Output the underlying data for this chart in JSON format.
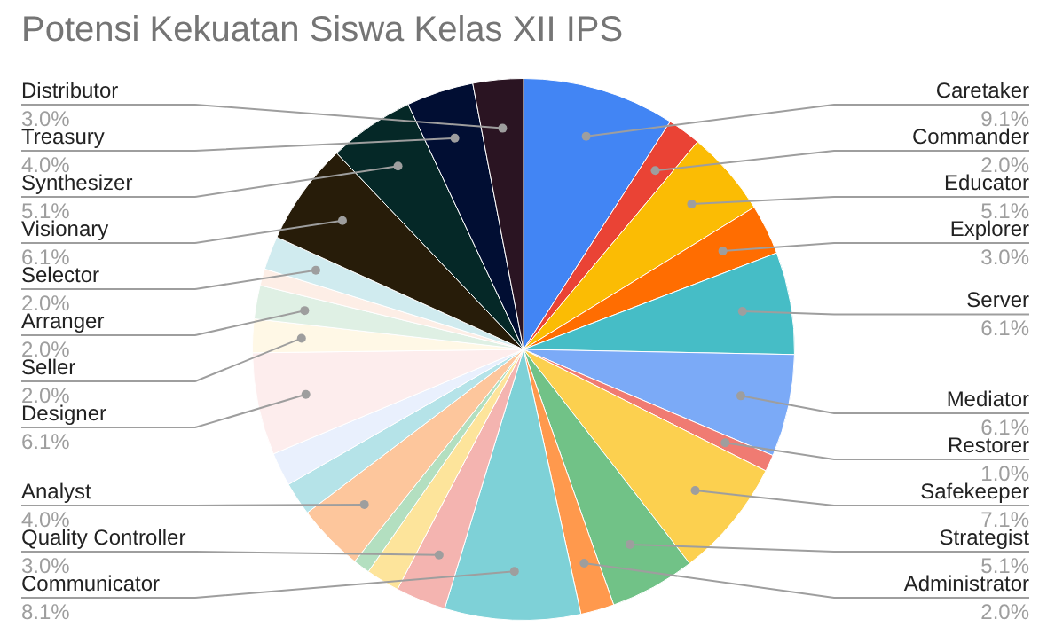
{
  "chart_data": {
    "type": "pie",
    "title": "Potensi Kekuatan Siswa Kelas XII IPS",
    "categories": [
      "Caretaker",
      "Commander",
      "Educator",
      "Explorer",
      "Server",
      "Mediator",
      "Restorer",
      "Safekeeper",
      "Strategist",
      "Administrator",
      "Communicator",
      "Quality Controller",
      null,
      null,
      "Analyst",
      null,
      null,
      "Designer",
      "Seller",
      "Arranger",
      null,
      "Selector",
      "Visionary",
      "Synthesizer",
      "Treasury",
      "Distributor"
    ],
    "values": [
      9.1,
      2.0,
      5.1,
      3.0,
      6.1,
      6.1,
      1.0,
      7.1,
      5.1,
      2.0,
      8.1,
      3.0,
      2.0,
      1.0,
      4.0,
      2.0,
      2.0,
      6.1,
      2.0,
      2.0,
      1.0,
      2.0,
      6.1,
      5.1,
      4.0,
      3.0
    ],
    "value_labels": [
      "9.1%",
      "2.0%",
      "5.1%",
      "3.0%",
      "6.1%",
      "6.1%",
      "1.0%",
      "7.1%",
      "5.1%",
      "2.0%",
      "8.1%",
      "3.0%",
      null,
      null,
      "4.0%",
      null,
      null,
      "6.1%",
      "2.0%",
      "2.0%",
      null,
      "2.0%",
      "6.1%",
      "5.1%",
      "4.0%",
      "3.0%"
    ],
    "colors": [
      "#4285f4",
      "#ea4335",
      "#fbbc04",
      "#ff6d01",
      "#46bdc6",
      "#7baaf7",
      "#f07b72",
      "#fcd04f",
      "#71c287",
      "#ff994d",
      "#7ed1d7",
      "#f4b4b0",
      "#fde49b",
      "#b3dfc0",
      "#fdc69c",
      "#b5e3e8",
      "#e9f0fd",
      "#fdeded",
      "#fff8e6",
      "#dff0e4",
      "#fdeee6",
      "#d0ebef",
      "#271c09",
      "#052827",
      "#010e33",
      "#2a1422"
    ],
    "legend": false
  }
}
